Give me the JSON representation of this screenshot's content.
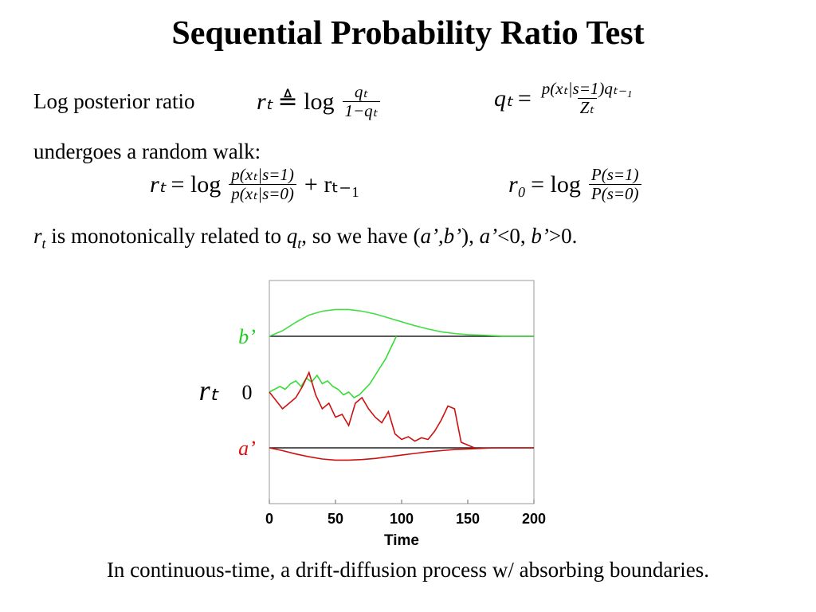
{
  "title": "Sequential Probability Ratio Test",
  "intro": "Log posterior ratio",
  "walk_text": "undergoes a random walk:",
  "formulas": [
    {
      "lhs": "rₜ",
      "op": "≜ log",
      "num": "qₜ",
      "den": "1−qₜ"
    },
    {
      "lhs": "qₜ",
      "op": "=",
      "num": "p(xₜ|s=1)qₜ₋₁",
      "den": "Zₜ"
    },
    {
      "lhs": "rₜ",
      "op": "= log",
      "num": "p(xₜ|s=1)",
      "den": "p(xₜ|s=0)",
      "tail": "+ rₜ₋₁"
    },
    {
      "lhs": "r₀",
      "op": "= log",
      "num": "P(s=1)",
      "den": "P(s=0)"
    }
  ],
  "statement": [
    "r",
    "t",
    " is monotonically related to ",
    "q",
    "t",
    ", so we have (",
    "a’,b’",
    "), ",
    "a’",
    "<0, ",
    "b’",
    ">0."
  ],
  "caption": "In continuous-time, a drift-diffusion process w/ absorbing boundaries.",
  "chart_data": {
    "type": "line",
    "xlabel": "Time",
    "ylabel": "rₜ",
    "xlim": [
      0,
      200
    ],
    "xticks": [
      0,
      50,
      100,
      150,
      200
    ],
    "ylim": [
      -2,
      2
    ],
    "yticks": [
      {
        "value": 1,
        "label": "b’"
      },
      0,
      {
        "value": -1,
        "label": "a’"
      }
    ],
    "ytick_colors": [
      "#22cc22",
      "#000000",
      "#dd1111"
    ],
    "boundary_color": "#222222",
    "series": [
      {
        "color": "#44dd44",
        "x": [
          0,
          10,
          20,
          30,
          40,
          50,
          60,
          70,
          80,
          90,
          100,
          110,
          120,
          130,
          140,
          150,
          160,
          170,
          180,
          190,
          200
        ],
        "values": [
          1.0,
          1.1,
          1.25,
          1.38,
          1.45,
          1.48,
          1.48,
          1.45,
          1.4,
          1.33,
          1.26,
          1.19,
          1.13,
          1.08,
          1.05,
          1.03,
          1.02,
          1.01,
          1.0,
          1.0,
          1.0
        ]
      },
      {
        "color": "#cc1111",
        "x": [
          0,
          10,
          20,
          30,
          40,
          50,
          60,
          70,
          80,
          90,
          100,
          110,
          120,
          130,
          140,
          150,
          160,
          170,
          180,
          190,
          200
        ],
        "values": [
          -1.0,
          -1.05,
          -1.11,
          -1.16,
          -1.2,
          -1.22,
          -1.22,
          -1.21,
          -1.19,
          -1.16,
          -1.13,
          -1.1,
          -1.07,
          -1.05,
          -1.03,
          -1.02,
          -1.01,
          -1.0,
          -1.0,
          -1.0,
          -1.0
        ]
      },
      {
        "color": "#33dd33",
        "x": [
          0,
          4,
          8,
          12,
          16,
          20,
          24,
          28,
          32,
          36,
          40,
          44,
          48,
          52,
          56,
          60,
          64,
          68,
          72,
          76,
          80,
          84,
          88,
          92,
          96
        ],
        "values": [
          0,
          0.05,
          0.1,
          0.05,
          0.15,
          0.2,
          0.1,
          0.25,
          0.18,
          0.3,
          0.15,
          0.2,
          0.1,
          0.05,
          -0.05,
          0.0,
          -0.1,
          -0.05,
          0.05,
          0.15,
          0.3,
          0.45,
          0.6,
          0.8,
          1.0
        ]
      },
      {
        "color": "#cc1111",
        "x": [
          0,
          5,
          10,
          15,
          20,
          25,
          30,
          35,
          40,
          45,
          50,
          55,
          60,
          65,
          70,
          75,
          80,
          85,
          90,
          95,
          100,
          105,
          110,
          115,
          120,
          125,
          130,
          135,
          140,
          145,
          150,
          155
        ],
        "values": [
          0,
          -0.15,
          -0.3,
          -0.2,
          -0.1,
          0.1,
          0.35,
          -0.05,
          -0.3,
          -0.2,
          -0.45,
          -0.4,
          -0.6,
          -0.2,
          -0.1,
          -0.3,
          -0.45,
          -0.55,
          -0.35,
          -0.75,
          -0.85,
          -0.8,
          -0.88,
          -0.82,
          -0.85,
          -0.7,
          -0.5,
          -0.25,
          -0.3,
          -0.9,
          -0.95,
          -1.0
        ]
      }
    ]
  }
}
